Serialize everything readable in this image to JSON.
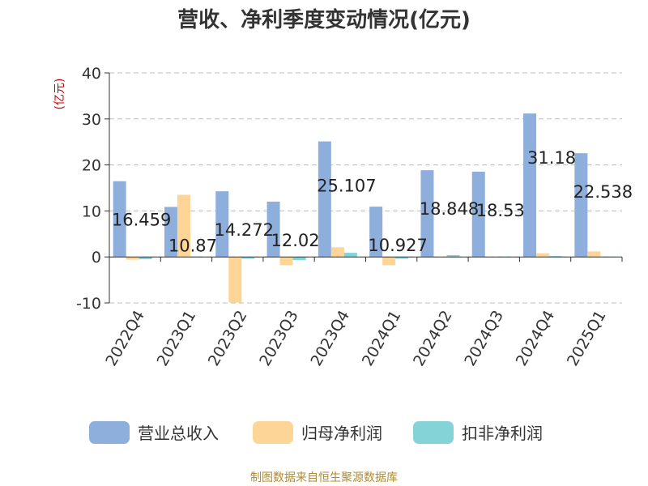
{
  "chart_data": {
    "type": "bar",
    "title": "营收、净利季度变动情况(亿元)",
    "unit_label": "(亿元)",
    "categories": [
      "2022Q4",
      "2023Q1",
      "2023Q2",
      "2023Q3",
      "2023Q4",
      "2024Q1",
      "2024Q2",
      "2024Q3",
      "2024Q4",
      "2025Q1"
    ],
    "series": [
      {
        "name": "营业总收入",
        "color": "#8eaedc",
        "values": [
          16.459,
          10.87,
          14.272,
          12.02,
          25.107,
          10.927,
          18.848,
          18.53,
          31.18,
          22.538
        ],
        "labels": [
          "16.459",
          "10.87",
          "14.272",
          "12.02",
          "25.107",
          "10.927",
          "18.848",
          "18.53",
          "31.18",
          "22.538"
        ]
      },
      {
        "name": "归母净利润",
        "color": "#fdd597",
        "values": [
          -0.6,
          13.5,
          -9.9,
          -1.8,
          2.1,
          -1.8,
          0.1,
          0.1,
          0.8,
          1.2
        ]
      },
      {
        "name": "扣非净利润",
        "color": "#84d4d7",
        "values": [
          -0.5,
          0.1,
          -0.4,
          -0.7,
          0.9,
          -0.4,
          0.4,
          0.1,
          0.2,
          0.1
        ]
      }
    ],
    "ylim": [
      -10,
      40
    ],
    "yticks": [
      -10,
      0,
      10,
      20,
      30,
      40
    ],
    "grid": true,
    "legend_position": "bottom"
  },
  "source": "制图数据来自恒生聚源数据库"
}
